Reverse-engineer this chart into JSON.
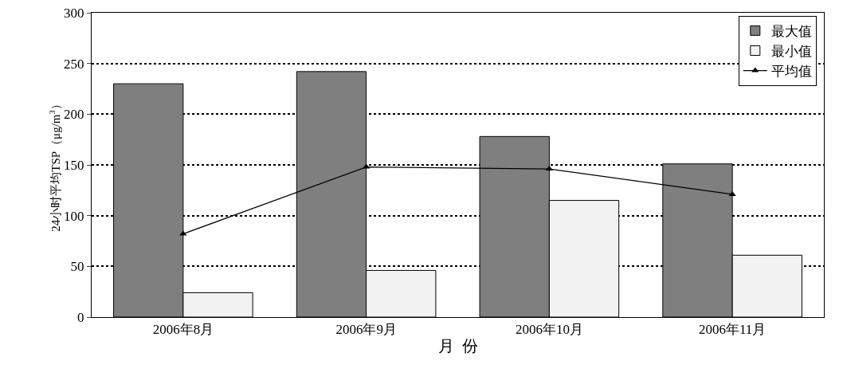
{
  "chart_data": {
    "type": "bar",
    "xlabel": "月  份",
    "ylabel": "24小时平均TSP（μg/m$^{3}$）",
    "categories": [
      "2006年8月",
      "2006年9月",
      "2006年10月",
      "2006年11月"
    ],
    "series": [
      {
        "name": "最大值",
        "color": "#7f7f7f",
        "values": [
          230,
          242,
          178,
          151
        ]
      },
      {
        "name": "最小值",
        "color": "#f2f2f2",
        "values": [
          24,
          46,
          115,
          61
        ]
      },
      {
        "name": "平均值",
        "type": "line",
        "color": "#000000",
        "marker": "triangle",
        "values": [
          82,
          148,
          146,
          121
        ]
      }
    ],
    "ylim": [
      0,
      300
    ],
    "yticks": [
      0,
      50,
      100,
      150,
      200,
      250,
      300
    ],
    "grid": "y",
    "legend": "top right"
  }
}
